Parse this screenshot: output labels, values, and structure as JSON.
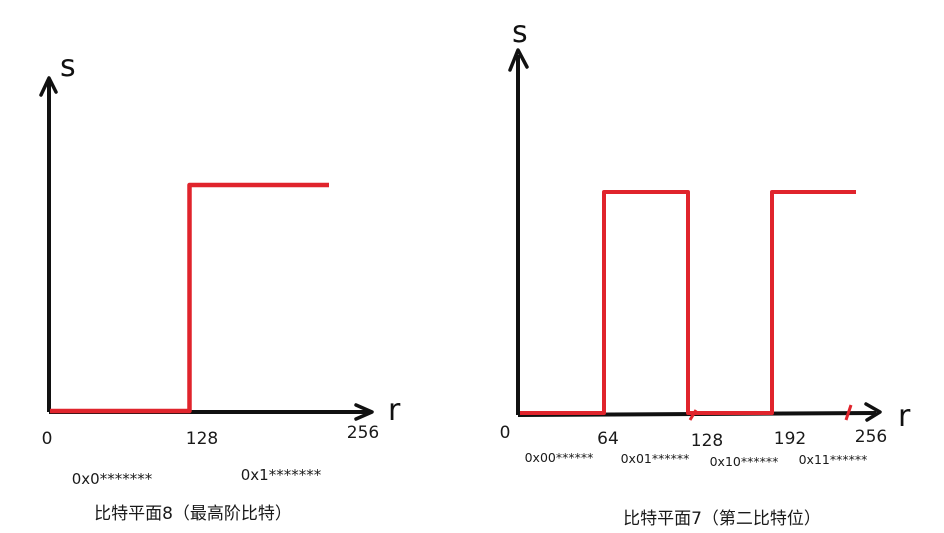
{
  "chart_data": [
    {
      "type": "line",
      "title": "",
      "caption": "比特平面8（最高阶比特）",
      "xlabel": "r",
      "ylabel": "s",
      "x_ticks": [
        "0",
        "128",
        "256"
      ],
      "xlim": [
        0,
        256
      ],
      "series": [
        {
          "x": [
            0,
            128,
            128,
            256
          ],
          "y": [
            0,
            0,
            1,
            1
          ]
        }
      ],
      "color": "#e0242c",
      "annotations": [
        "0x0*******",
        "0x1*******"
      ]
    },
    {
      "type": "line",
      "title": "",
      "caption": "比特平面7（第二比特位）",
      "xlabel": "r",
      "ylabel": "s",
      "x_ticks": [
        "0",
        "64",
        "128",
        "192",
        "256"
      ],
      "xlim": [
        0,
        256
      ],
      "series": [
        {
          "x": [
            0,
            64,
            64,
            128,
            128,
            192,
            192,
            256
          ],
          "y": [
            0,
            0,
            1,
            1,
            0,
            0,
            1,
            1
          ]
        }
      ],
      "color": "#e0242c",
      "annotations": [
        "0x00******",
        "0x01******",
        "0x10******",
        "0x11******"
      ]
    }
  ]
}
